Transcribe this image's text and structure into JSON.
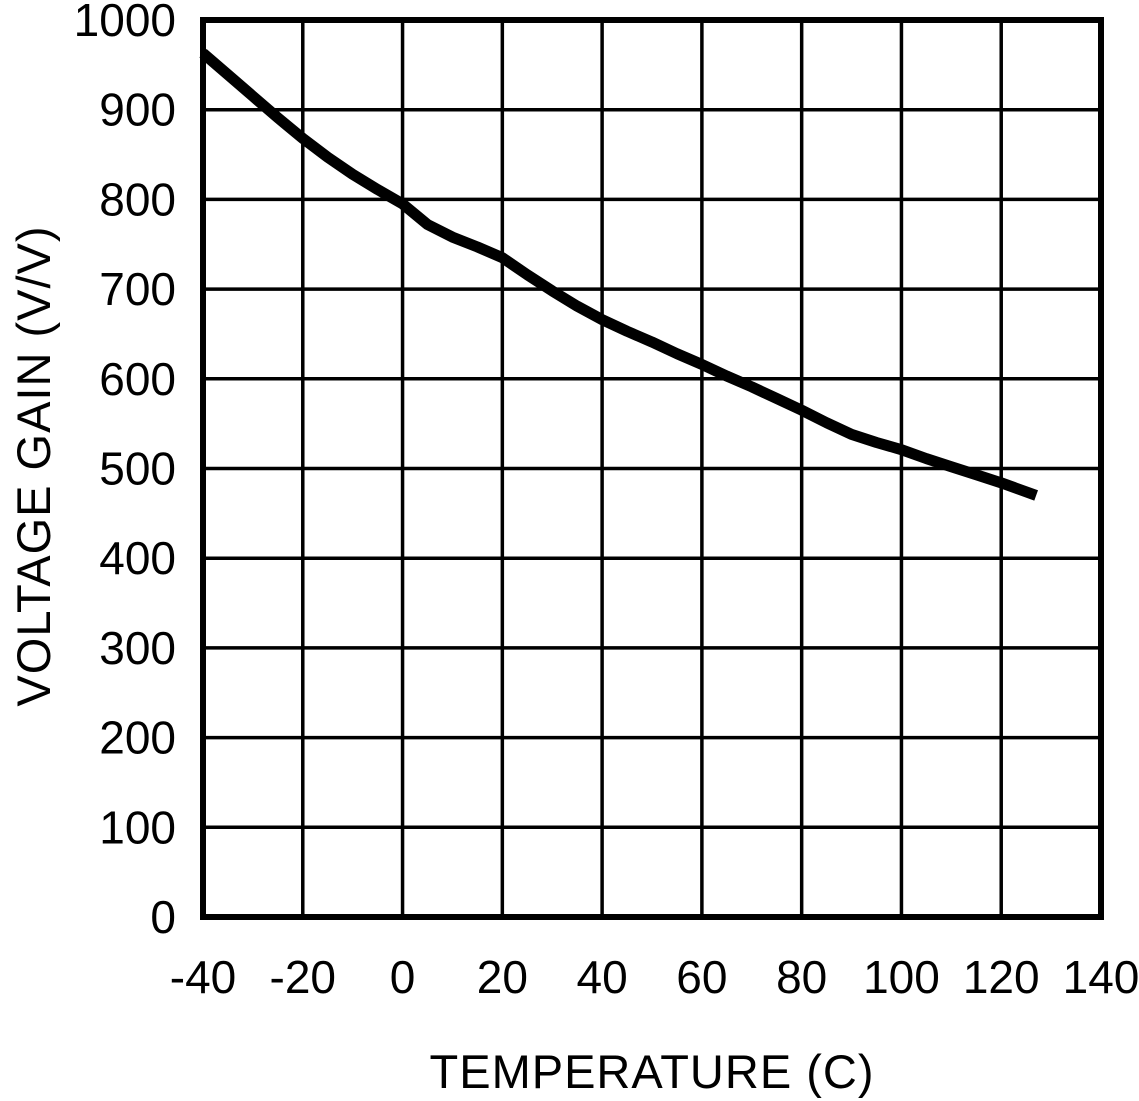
{
  "figure": {
    "background": "#ffffff",
    "foreground": "#000000"
  },
  "chart_data": {
    "type": "line",
    "title": "",
    "xlabel": "TEMPERATURE (C)",
    "ylabel": "VOLTAGE GAIN (V/V)",
    "xlim": [
      -40,
      140
    ],
    "ylim": [
      0,
      1000
    ],
    "x_ticks": [
      -40,
      -20,
      0,
      20,
      40,
      60,
      80,
      100,
      120,
      140
    ],
    "y_ticks": [
      0,
      100,
      200,
      300,
      400,
      500,
      600,
      700,
      800,
      900,
      1000
    ],
    "grid": true,
    "legend": false,
    "line_width": 11,
    "series": [
      {
        "name": "voltage-gain-vs-temperature",
        "color": "#000000",
        "x": [
          -40,
          -35,
          -30,
          -25,
          -20,
          -15,
          -10,
          -5,
          0,
          5,
          10,
          15,
          20,
          25,
          30,
          35,
          40,
          45,
          50,
          55,
          60,
          65,
          70,
          75,
          80,
          85,
          90,
          95,
          100,
          105,
          110,
          115,
          120,
          127
        ],
        "y": [
          963,
          939,
          915,
          891,
          868,
          847,
          828,
          811,
          795,
          772,
          758,
          747,
          735,
          716,
          698,
          681,
          666,
          653,
          641,
          628,
          616,
          603,
          591,
          578,
          565,
          551,
          538,
          529,
          521,
          511,
          502,
          493,
          484,
          470
        ]
      }
    ]
  }
}
